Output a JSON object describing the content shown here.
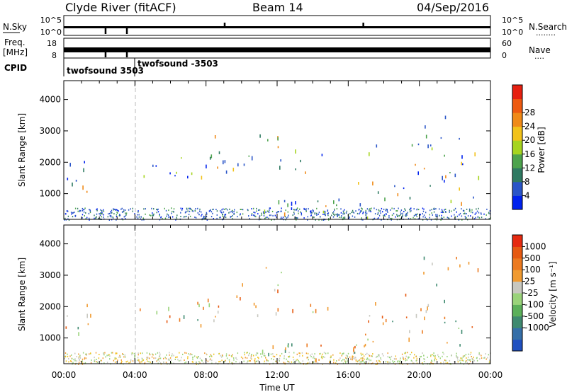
{
  "header": {
    "title": "Clyde River (fitACF)",
    "beam": "Beam 14",
    "date": "04/Sep/2016"
  },
  "strip1": {
    "left_label": "N.Sky",
    "left_ticks": [
      "10^5",
      "10^0"
    ],
    "right_ticks": [
      "10^5",
      "10^0"
    ],
    "right_label": "N.Search",
    "right_dots": "........"
  },
  "strip2": {
    "left_label_1": "Freq.",
    "left_label_2": "[MHz]",
    "left_ticks": [
      "18",
      "8"
    ],
    "right_ticks": [
      "60",
      "0"
    ],
    "right_label": "Nave",
    "right_dots": "...."
  },
  "cpid": {
    "label": "CPID",
    "entries": [
      {
        "text": "twofsound 3503",
        "time_h": 0.0
      },
      {
        "text": "twofsound -3503",
        "time_h": 3.8
      }
    ]
  },
  "chart_data": [
    {
      "type": "heatmap",
      "name": "power",
      "ylabel": "Slant Range [km]",
      "xlabel": "",
      "xlim": [
        0,
        24
      ],
      "ylim": [
        180,
        4600
      ],
      "yticks": [
        1000,
        2000,
        3000,
        4000
      ],
      "colorbar": {
        "label": "Power [dB]",
        "ticks": [
          "4",
          "8",
          "12",
          "16",
          "20",
          "24",
          "28"
        ],
        "colors": [
          "#0022ee",
          "#2a55c8",
          "#2f7a62",
          "#4da34d",
          "#a6d41f",
          "#f2c21a",
          "#f08a18",
          "#ee5a10",
          "#e62010"
        ]
      }
    },
    {
      "type": "heatmap",
      "name": "velocity",
      "ylabel": "Slant Range [km]",
      "xlabel": "Time UT",
      "xlim": [
        0,
        24
      ],
      "ylim": [
        180,
        4600
      ],
      "yticks": [
        1000,
        2000,
        3000,
        4000
      ],
      "xticks": [
        "00:00",
        "04:00",
        "08:00",
        "12:00",
        "16:00",
        "20:00",
        "00:00"
      ],
      "colorbar": {
        "label": "Velocity [m s⁻¹]",
        "ticks": [
          "1000",
          "500",
          "100",
          "25",
          "-25",
          "-100",
          "-500",
          "-1000"
        ],
        "colors": [
          "#2050c0",
          "#356fa8",
          "#3f8a70",
          "#5cb05a",
          "#9ad37a",
          "#c8c8c0",
          "#f09a30",
          "#ec7a20",
          "#e65a12",
          "#e62a10"
        ]
      }
    }
  ]
}
